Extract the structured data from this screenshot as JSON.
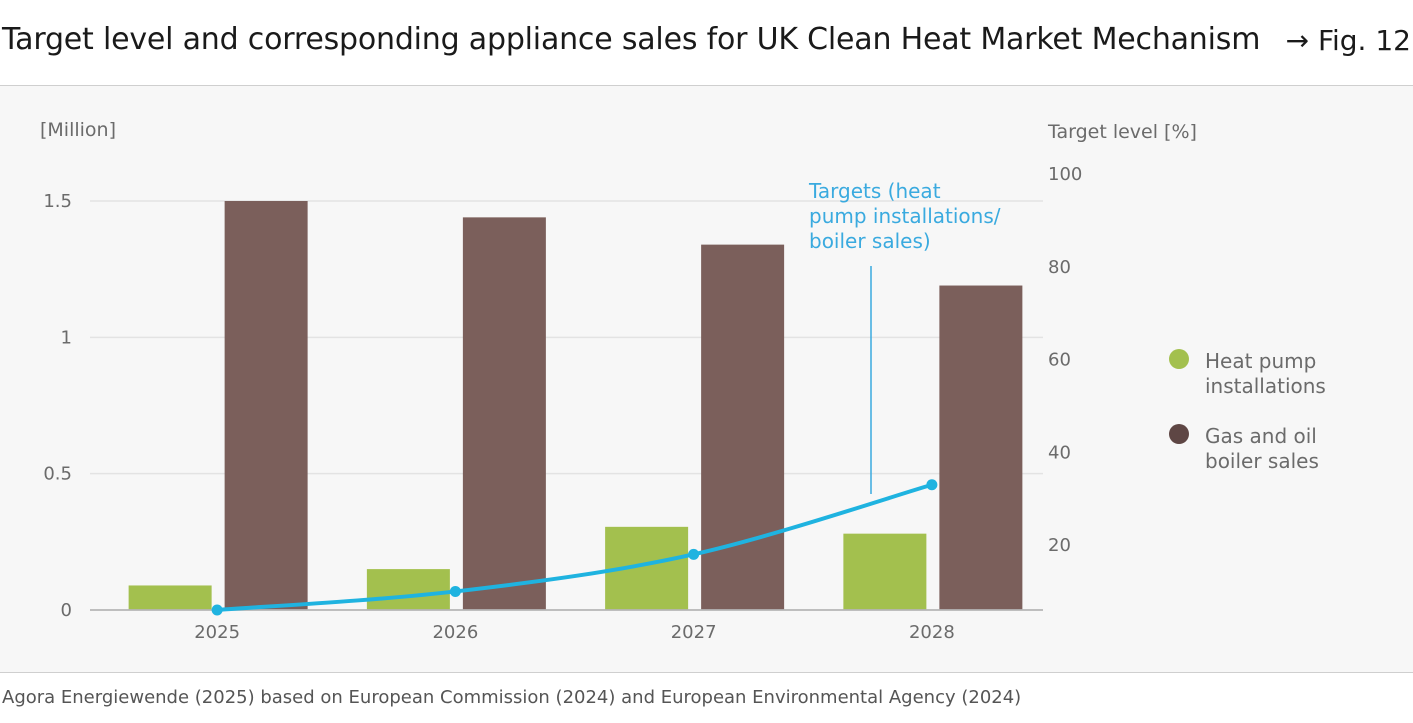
{
  "header": {
    "title": "Target level and corresponding appliance sales for UK Clean Heat Market Mechanism",
    "fig_ref": "→ Fig. 12"
  },
  "source": "Agora Energiewende (2025) based on European Commission (2024) and European Environmental Agency (2024)",
  "colors": {
    "heat_pump": "#a3c04e",
    "boiler": "#7b5f5b",
    "target_line": "#1fb3e0",
    "annotation": "#3aaadf"
  },
  "chart_data": {
    "type": "bar",
    "categories": [
      "2025",
      "2026",
      "2027",
      "2028"
    ],
    "series": [
      {
        "name": "Heat pump installations",
        "axis": "left",
        "values": [
          0.09,
          0.15,
          0.305,
          0.28
        ]
      },
      {
        "name": "Gas and oil boiler sales",
        "axis": "left",
        "values": [
          1.5,
          1.44,
          1.34,
          1.19
        ]
      },
      {
        "name": "Targets (heat pump installations/ boiler sales)",
        "type": "line",
        "axis": "right",
        "values": [
          6,
          10,
          18,
          33
        ]
      }
    ],
    "left_axis": {
      "label": "[Million]",
      "ticks": [
        "0",
        "0.5",
        "1",
        "1.5"
      ],
      "ylim": [
        0,
        1.5
      ]
    },
    "right_axis": {
      "label": "Target level [%]",
      "ticks": [
        "20",
        "40",
        "60",
        "80",
        "100"
      ],
      "ylim": [
        6,
        100
      ]
    },
    "legend": {
      "position": "right",
      "entries": [
        {
          "lines": [
            "Heat pump",
            "installations"
          ]
        },
        {
          "lines": [
            "Gas and oil",
            "boiler sales"
          ]
        }
      ]
    },
    "annotation": {
      "lines": [
        "Targets (heat",
        "pump installations/",
        "boiler sales)"
      ]
    },
    "grid": true
  }
}
